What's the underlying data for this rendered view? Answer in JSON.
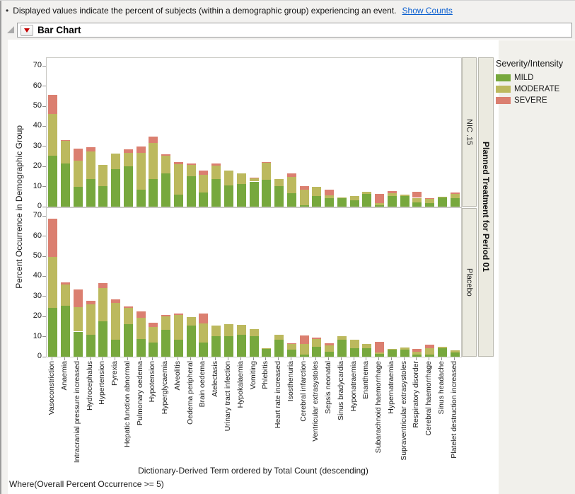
{
  "note": {
    "bullet": "•",
    "text": "Displayed values indicate the percent of subjects (within a demographic group) experiencing an event.",
    "link": "Show Counts"
  },
  "outline_title": "Bar Chart",
  "legend": {
    "title": "Severity/Intensity",
    "items": [
      {
        "label": "MILD",
        "color": "#77A83D"
      },
      {
        "label": "MODERATE",
        "color": "#BCB95E"
      },
      {
        "label": "SEVERE",
        "color": "#DB7F70"
      }
    ]
  },
  "strips": {
    "group_label": "Planned Treatment for Period 01"
  },
  "footer": {
    "where_clause": "Where(Overall Percent Occurrence >= 5)"
  },
  "chart_data": {
    "type": "bar",
    "stacked": true,
    "orientation": "vertical",
    "title": "Bar Chart",
    "ylabel": "Percent Occurrence in Demographic Group",
    "xlabel": "Dictionary-Derived Term ordered by Total Count (descending)",
    "ylim": [
      0,
      74
    ],
    "yticks": [
      0,
      10,
      20,
      30,
      40,
      50,
      60,
      70
    ],
    "grid": false,
    "legend_position": "right",
    "colors": {
      "MILD": "#77A83D",
      "MODERATE": "#BCB95E",
      "SEVERE": "#DB7F70"
    },
    "categories": [
      "Vasoconstriction",
      "Anaemia",
      "Intracranial pressure increased",
      "Hydrocephalus",
      "Hypertension",
      "Pyrexia",
      "Hepatic function abnormal",
      "Pulmonary oedema",
      "Hypotension",
      "Hyperglycaemia",
      "Alveolitis",
      "Oedema peripheral",
      "Brain oedema",
      "Atelectasis",
      "Urinary tract infection",
      "Hypokalaemia",
      "Vomiting",
      "Phlebitis",
      "Heart rate increased",
      "Isosthenuria",
      "Cerebral infarction",
      "Ventricular extrasystoles",
      "Sepsis neonatal",
      "Sinus bradycardia",
      "Hyponatraemia",
      "Enanthema",
      "Subarachnoid haemorrhage",
      "Hypernatraemia",
      "Supraventricular extrasystoles",
      "Respiratory disorder",
      "Cerebral haemorrhage",
      "Sinus headache",
      "Platelet destruction increased"
    ],
    "panels": [
      {
        "label": "NIC .15",
        "series": [
          {
            "name": "MILD",
            "values": [
              25.5,
              21.4,
              9.7,
              13.6,
              10.1,
              18.6,
              20.2,
              8.3,
              13.6,
              16.6,
              5.9,
              15.1,
              7.1,
              13.9,
              10.7,
              11.3,
              12.5,
              13.4,
              10.3,
              6.8,
              0.8,
              5.3,
              4.2,
              4.3,
              3.3,
              6.2,
              0.8,
              5.3,
              5.3,
              2.1,
              1.8,
              4.7,
              4.2
            ]
          },
          {
            "name": "MODERATE",
            "values": [
              20.5,
              11.3,
              13.1,
              13.7,
              10.7,
              7.7,
              6.7,
              18.6,
              18.1,
              8.9,
              15.4,
              5.5,
              8.9,
              6.6,
              7.1,
              5.3,
              1.6,
              8.3,
              3.3,
              8.1,
              7.5,
              4.4,
              1.5,
              0.3,
              2.0,
              1.2,
              0.8,
              1.5,
              0.6,
              2.3,
              2.1,
              0.4,
              2.0
            ]
          },
          {
            "name": "SEVERE",
            "values": [
              9.5,
              0.5,
              5.9,
              2.4,
              0,
              0,
              1.6,
              3.0,
              3.3,
              0.6,
              0.8,
              0.8,
              2.1,
              0.9,
              0,
              0,
              0.4,
              0.6,
              0,
              1.8,
              2.0,
              0,
              2.8,
              0,
              0,
              0,
              4.6,
              0.8,
              0,
              3.0,
              0.5,
              0,
              0.9
            ]
          }
        ]
      },
      {
        "label": "Placebo",
        "series": [
          {
            "name": "MILD",
            "values": [
              24.4,
              25.5,
              12.5,
              10.8,
              17.5,
              8.3,
              16.2,
              8.9,
              6.9,
              13.3,
              8.3,
              15.4,
              6.9,
              10.3,
              10.1,
              10.9,
              10.3,
              4.2,
              8.3,
              3.6,
              1.2,
              5.0,
              2.6,
              8.3,
              4.1,
              4.4,
              1.4,
              3.6,
              3.6,
              0.9,
              1.2,
              4.1,
              2.0
            ]
          },
          {
            "name": "MODERATE",
            "values": [
              25.1,
              10.5,
              12.1,
              15.4,
              16.8,
              18.4,
              8.1,
              10.3,
              7.9,
              6.9,
              12.4,
              4.4,
              9.7,
              5.3,
              6.2,
              4.9,
              3.6,
              0.2,
              2.7,
              2.7,
              5.1,
              3.9,
              3.0,
              1.8,
              4.4,
              1.8,
              0.7,
              0.4,
              0.9,
              1.6,
              3.0,
              0.8,
              1.2
            ]
          },
          {
            "name": "SEVERE",
            "values": [
              19.3,
              0.8,
              9.0,
              1.5,
              2.2,
              1.8,
              0.8,
              3.3,
              2.1,
              0.6,
              0.8,
              0,
              5.0,
              0,
              0,
              0,
              0,
              0,
              0,
              0.5,
              4.4,
              0.6,
              1.2,
              0,
              0,
              0,
              5.2,
              0,
              0,
              1.2,
              1.8,
              0,
              0
            ]
          }
        ]
      }
    ]
  }
}
